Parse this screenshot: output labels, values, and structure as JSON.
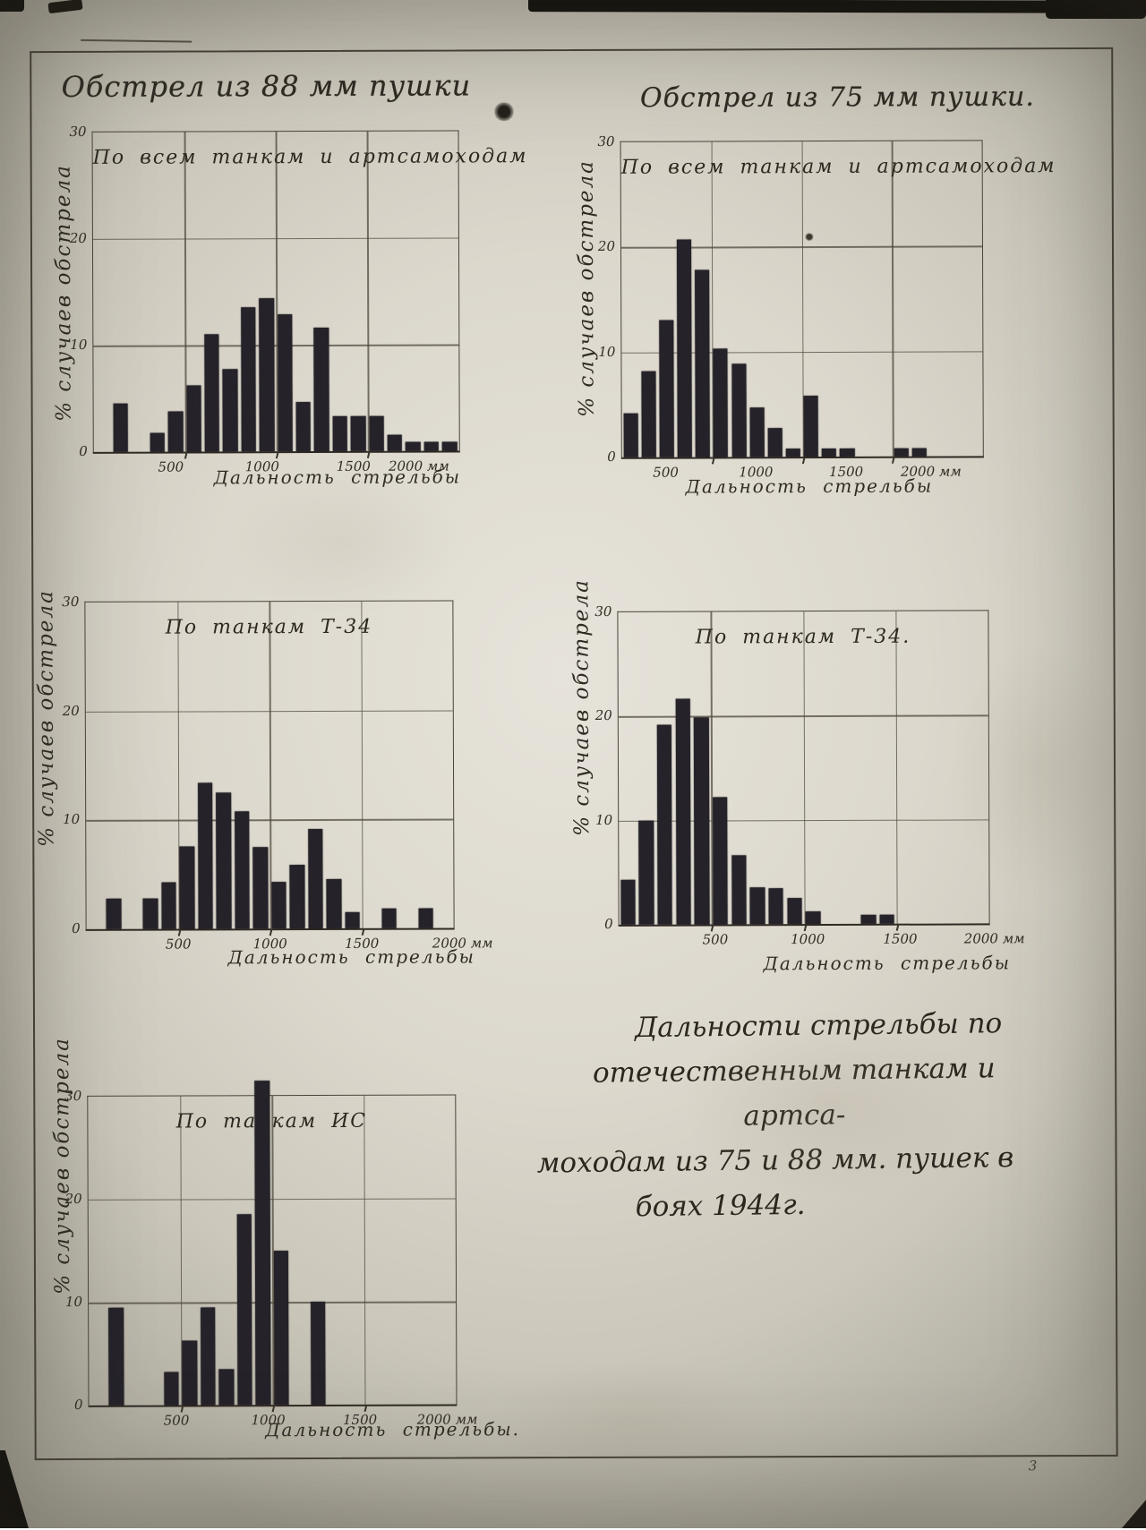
{
  "document": {
    "headers": {
      "left": "Обстрел из 88 мм пушки",
      "right": "Обстрел из 75 мм пушки."
    },
    "caption": {
      "line1": "Дальности стрельбы по",
      "line2": "отечественным танкам и артса-",
      "line3": "моходам из 75 и 88 мм. пушек в",
      "line4": "боях  1944г."
    },
    "page_number": "3"
  },
  "axes": {
    "y_label": "% случаев обстрела",
    "y_tick_labels": [
      "30",
      "20",
      "10",
      "0"
    ],
    "x_tick_labels": [
      "500",
      "1000",
      "1500"
    ],
    "x_end_label": "2000 мм"
  },
  "chart_data": [
    {
      "id": "88mm-all-targets",
      "type": "bar",
      "gun": "88 мм",
      "title": "По всем танкам и артсамоходам",
      "x_label": "Дальность стрельбы",
      "bin_size_m": 100,
      "x_range_m": [
        0,
        2000
      ],
      "ylim": [
        0,
        30
      ],
      "grid": "on",
      "values": [
        0,
        4.5,
        0,
        1.8,
        3.8,
        6.2,
        11,
        7.7,
        13.5,
        14.4,
        12.9,
        4.6,
        11.6,
        3.3,
        3.3,
        3.3,
        1.5,
        0.8,
        0.8,
        0.8
      ]
    },
    {
      "id": "75mm-all-targets",
      "type": "bar",
      "gun": "75 мм",
      "title": "По всем танкам и артсамоходам",
      "x_label": "Дальность стрельбы",
      "bin_size_m": 100,
      "x_range_m": [
        0,
        2000
      ],
      "ylim": [
        0,
        30
      ],
      "grid": "on",
      "values": [
        4.2,
        8.2,
        13,
        20.7,
        17.8,
        10.3,
        8.9,
        4.7,
        2.7,
        0.8,
        5.8,
        0.8,
        0.8,
        0,
        0,
        0.8,
        0.8,
        0,
        0,
        0
      ]
    },
    {
      "id": "88mm-t34",
      "type": "bar",
      "gun": "88 мм",
      "title": "По танкам Т-34",
      "x_label": "Дальность стрельбы",
      "bin_size_m": 100,
      "x_range_m": [
        0,
        2000
      ],
      "ylim": [
        0,
        30
      ],
      "grid": "on",
      "values": [
        0,
        2.8,
        0,
        2.8,
        4.3,
        7.6,
        13.4,
        12.5,
        10.8,
        7.5,
        4.3,
        5.8,
        9.1,
        4.5,
        1.5,
        0,
        1.8,
        0,
        1.8,
        0
      ]
    },
    {
      "id": "75mm-t34",
      "type": "bar",
      "gun": "75 мм",
      "title": "По танкам Т-34.",
      "x_label": "Дальность стрельбы",
      "bin_size_m": 100,
      "x_range_m": [
        0,
        2000
      ],
      "ylim": [
        0,
        30
      ],
      "grid": "on",
      "values": [
        4.3,
        10,
        19.2,
        21.7,
        19.9,
        12.2,
        6.6,
        3.5,
        3.4,
        2.5,
        1.2,
        0,
        0,
        0.9,
        0.9,
        0,
        0,
        0,
        0,
        0
      ]
    },
    {
      "id": "88mm-is",
      "type": "bar",
      "gun": "88 мм",
      "title": "По танкам ИС",
      "x_label": "Дальность стрельбы.",
      "bin_size_m": 100,
      "x_range_m": [
        0,
        2000
      ],
      "ylim": [
        0,
        30
      ],
      "grid": "on",
      "note": "peak bar exceeds the 30% frame line",
      "values": [
        0,
        9.5,
        0,
        0,
        3.2,
        6.3,
        9.5,
        3.5,
        18.5,
        31.5,
        15,
        0,
        10,
        0,
        0,
        0,
        0,
        0,
        0,
        0
      ]
    }
  ]
}
